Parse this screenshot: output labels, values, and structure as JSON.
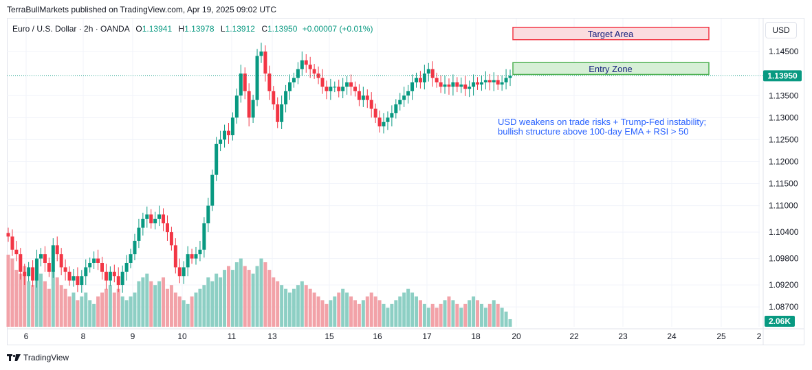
{
  "publisher_line": "TerraBullMarkets published on TradingView.com, Apr 19, 2025 09:02 UTC",
  "legend": {
    "symbol": "Euro / U.S. Dollar · 2h · OANDA",
    "o_label": "O",
    "o": "1.13941",
    "h_label": "H",
    "h": "1.13978",
    "l_label": "L",
    "l": "1.13912",
    "c_label": "C",
    "c": "1.13950",
    "change": "+0.00007 (+0.01%)"
  },
  "currency_button": "USD",
  "footer_brand": "TradingView",
  "colors": {
    "up": "#089981",
    "down": "#f23645",
    "vol_up": "#8dcfc4",
    "vol_down": "#f2a2a8",
    "target_fill": "#fbdcdf",
    "target_border": "#f23645",
    "entry_fill": "#d6efd6",
    "entry_border": "#4caf50",
    "annotation": "#2962ff",
    "label_bg": "#089981"
  },
  "chart_data": {
    "type": "candlestick",
    "symbol": "EURUSD",
    "timeframe": "2h",
    "x_ticks": [
      "6",
      "8",
      "9",
      "10",
      "11",
      "13",
      "15",
      "16",
      "17",
      "18",
      "20",
      "22",
      "23",
      "24",
      "25",
      "2"
    ],
    "y_ticks": [
      "1.14500",
      "1.13500",
      "1.13000",
      "1.12500",
      "1.12000",
      "1.11500",
      "1.11000",
      "1.10400",
      "1.09800",
      "1.09200",
      "1.08700"
    ],
    "y_tick_values": [
      1.145,
      1.135,
      1.13,
      1.125,
      1.12,
      1.115,
      1.11,
      1.104,
      1.098,
      1.092,
      1.087
    ],
    "last_price": 1.1395,
    "last_price_label": "1.13950",
    "volume_label": "2.06K",
    "annotations": {
      "target_area": {
        "label": "Target Area",
        "price_high": 1.1505,
        "price_low": 1.1477
      },
      "entry_zone": {
        "label": "Entry Zone",
        "price_high": 1.1425,
        "price_low": 1.1398
      },
      "note_line1": "USD weakens on trade risks + Trump-Fed instability;",
      "note_line2": "bullish structure above 100-day EMA + RSI > 50"
    },
    "closes": [
      1.103,
      1.1,
      1.099,
      1.095,
      1.094,
      1.096,
      1.093,
      1.098,
      1.099,
      1.097,
      1.095,
      1.101,
      1.099,
      1.096,
      1.095,
      1.093,
      1.094,
      1.092,
      1.094,
      1.096,
      1.097,
      1.098,
      1.097,
      1.095,
      1.093,
      1.095,
      1.094,
      1.092,
      1.095,
      1.097,
      1.099,
      1.102,
      1.105,
      1.107,
      1.108,
      1.106,
      1.107,
      1.108,
      1.106,
      1.104,
      1.101,
      1.096,
      1.094,
      1.096,
      1.099,
      1.098,
      1.099,
      1.1,
      1.106,
      1.11,
      1.117,
      1.124,
      1.125,
      1.127,
      1.126,
      1.13,
      1.135,
      1.14,
      1.136,
      1.13,
      1.134,
      1.144,
      1.145,
      1.14,
      1.136,
      1.133,
      1.129,
      1.133,
      1.136,
      1.138,
      1.139,
      1.141,
      1.143,
      1.142,
      1.141,
      1.14,
      1.139,
      1.137,
      1.136,
      1.137,
      1.137,
      1.136,
      1.137,
      1.138,
      1.137,
      1.136,
      1.134,
      1.135,
      1.134,
      1.132,
      1.13,
      1.128,
      1.129,
      1.13,
      1.131,
      1.133,
      1.134,
      1.135,
      1.136,
      1.138,
      1.139,
      1.138,
      1.14,
      1.141,
      1.139,
      1.138,
      1.137,
      1.1375,
      1.137,
      1.138,
      1.137,
      1.1375,
      1.1365,
      1.137,
      1.138,
      1.1375,
      1.138,
      1.1385,
      1.138,
      1.1385,
      1.1375,
      1.138,
      1.139,
      1.1395
    ],
    "volumes": [
      1.9,
      1.8,
      1.5,
      1.4,
      1.6,
      1.2,
      1.1,
      1.3,
      1.4,
      1.2,
      1.0,
      1.5,
      1.3,
      1.1,
      1.0,
      0.8,
      0.9,
      0.7,
      0.8,
      0.9,
      0.7,
      0.6,
      0.8,
      0.9,
      1.0,
      1.1,
      0.9,
      1.0,
      0.8,
      0.7,
      0.8,
      0.9,
      1.2,
      1.3,
      1.4,
      1.2,
      1.1,
      1.2,
      1.3,
      1.0,
      1.1,
      0.9,
      0.8,
      0.7,
      0.6,
      0.8,
      0.9,
      1.0,
      1.1,
      1.3,
      1.2,
      1.4,
      1.3,
      1.5,
      1.6,
      1.5,
      1.7,
      1.8,
      1.6,
      1.5,
      1.4,
      1.6,
      1.8,
      1.7,
      1.5,
      1.3,
      1.2,
      1.1,
      1.0,
      0.9,
      1.0,
      1.1,
      1.2,
      1.1,
      1.0,
      0.9,
      0.8,
      0.7,
      0.6,
      0.7,
      0.8,
      0.9,
      1.0,
      0.9,
      0.8,
      0.7,
      0.6,
      0.7,
      0.8,
      0.9,
      0.8,
      0.7,
      0.6,
      0.5,
      0.6,
      0.7,
      0.8,
      0.9,
      1.0,
      0.9,
      0.8,
      0.7,
      0.6,
      0.5,
      0.6,
      0.5,
      0.6,
      0.7,
      0.8,
      0.7,
      0.6,
      0.5,
      0.6,
      0.7,
      0.8,
      0.7,
      0.6,
      0.5,
      0.6,
      0.7,
      0.6,
      0.5,
      0.4,
      0.2
    ]
  }
}
